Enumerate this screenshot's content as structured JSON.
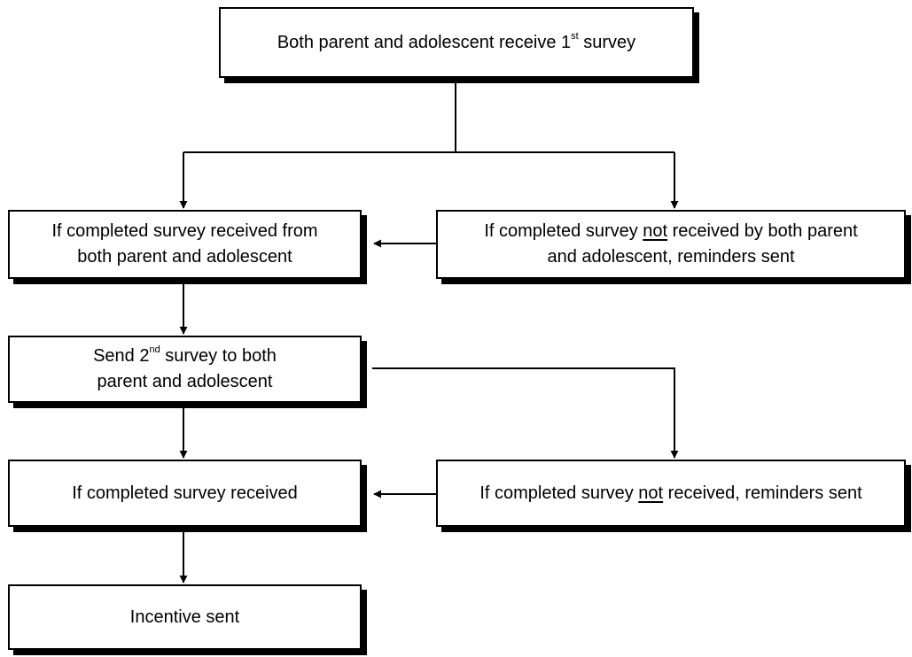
{
  "colors": {
    "line": "#000000",
    "box_fill": "#ffffff",
    "shadow": "#000000"
  },
  "nodes": {
    "n1": {
      "a": "Both parent and adolescent receive 1",
      "sup": "st",
      "b": " survey"
    },
    "n2": {
      "line1": "If completed survey received from",
      "line2": "both parent and adolescent"
    },
    "n3": {
      "a": "If completed survey ",
      "u": "not",
      "b": " received by both parent",
      "line2": "and adolescent, reminders sent"
    },
    "n4": {
      "a": "Send 2",
      "sup": "nd",
      "b": " survey to both",
      "line2": "parent and adolescent"
    },
    "n5": {
      "text": "If completed survey received"
    },
    "n6": {
      "a": "If completed survey ",
      "u": "not",
      "b": " received, reminders sent"
    },
    "n7": {
      "text": "Incentive sent"
    }
  }
}
